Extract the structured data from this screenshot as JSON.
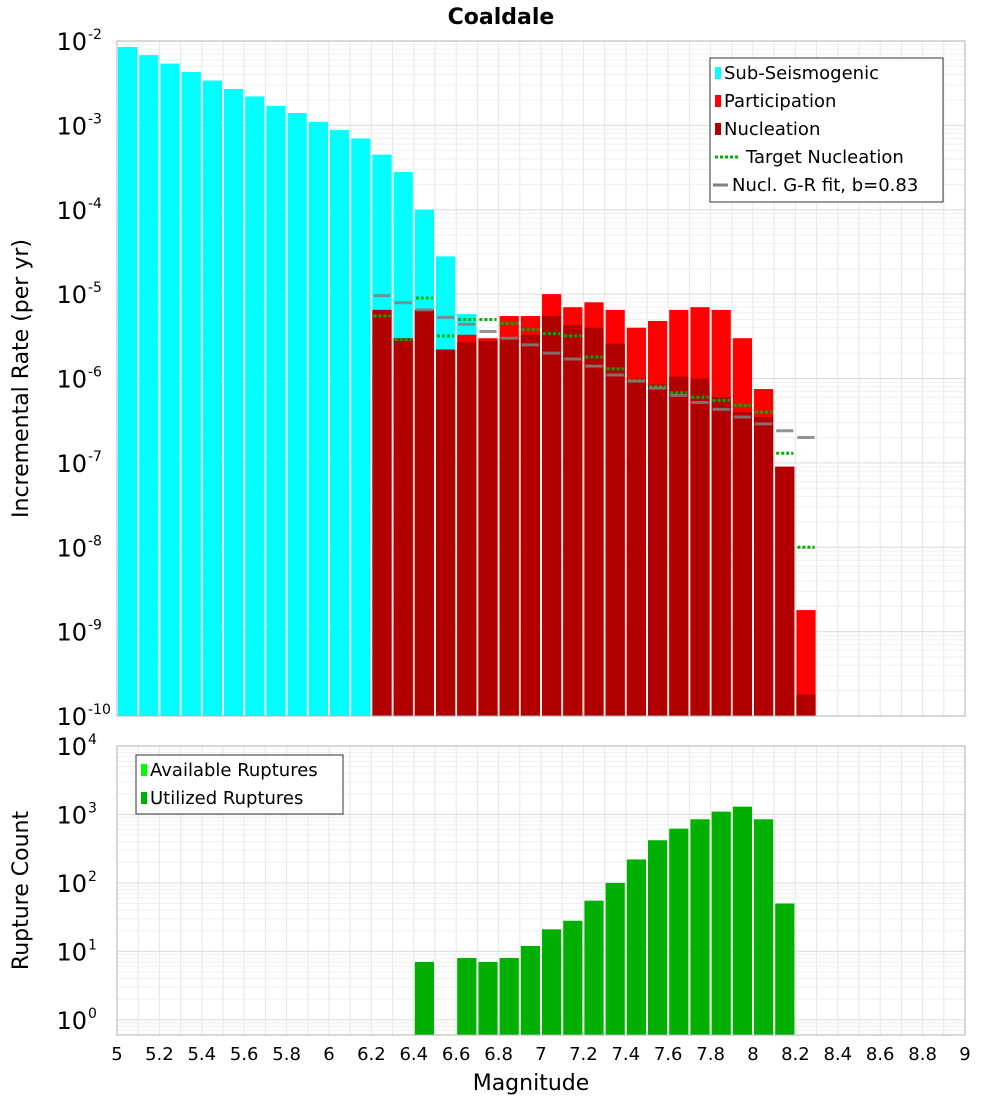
{
  "chart_data": [
    {
      "type": "bar",
      "title": "Coaldale",
      "xlabel": "",
      "ylabel": "Incremental Rate (per yr)",
      "yscale": "log",
      "xlim": [
        5,
        9
      ],
      "ylim": [
        1e-10,
        0.01
      ],
      "bin_width": 0.1,
      "grid": true,
      "legend_position": "top-right",
      "y_ticks": [
        {
          "base": "10",
          "exp": "-10"
        },
        {
          "base": "10",
          "exp": "-9"
        },
        {
          "base": "10",
          "exp": "-8"
        },
        {
          "base": "10",
          "exp": "-7"
        },
        {
          "base": "10",
          "exp": "-6"
        },
        {
          "base": "10",
          "exp": "-5"
        },
        {
          "base": "10",
          "exp": "-4"
        },
        {
          "base": "10",
          "exp": "-3"
        },
        {
          "base": "10",
          "exp": "-2"
        }
      ],
      "series": [
        {
          "name": "Sub-Seismogenic",
          "color": "#00ffff",
          "kind": "bar",
          "x": [
            5.05,
            5.15,
            5.25,
            5.35,
            5.45,
            5.55,
            5.65,
            5.75,
            5.85,
            5.95,
            6.05,
            6.15,
            6.25,
            6.35,
            6.45,
            6.55,
            6.65
          ],
          "values": [
            0.0085,
            0.0068,
            0.0054,
            0.0043,
            0.0034,
            0.0027,
            0.0022,
            0.0017,
            0.0014,
            0.0011,
            0.00088,
            0.0007,
            0.00045,
            0.00028,
            0.0001,
            2.8e-05,
            5.8e-06
          ]
        },
        {
          "name": "Participation",
          "color": "#ff0000",
          "kind": "bar",
          "x": [
            6.25,
            6.35,
            6.45,
            6.55,
            6.65,
            6.75,
            6.85,
            6.95,
            7.05,
            7.15,
            7.25,
            7.35,
            7.45,
            7.55,
            7.65,
            7.75,
            7.85,
            7.95,
            8.05,
            8.15,
            8.25
          ],
          "values": [
            6.5e-06,
            3e-06,
            6.5e-06,
            2.2e-06,
            3.3e-06,
            3e-06,
            5.5e-06,
            5.5e-06,
            1e-05,
            7e-06,
            8e-06,
            6.5e-06,
            4e-06,
            4.8e-06,
            6.5e-06,
            7e-06,
            6.5e-06,
            3e-06,
            7.5e-07,
            9e-08,
            1.8e-09
          ]
        },
        {
          "name": "Nucleation",
          "color": "#b20000",
          "kind": "bar",
          "x": [
            6.25,
            6.35,
            6.45,
            6.55,
            6.65,
            6.75,
            6.85,
            6.95,
            7.05,
            7.15,
            7.25,
            7.35,
            7.45,
            7.55,
            7.65,
            7.75,
            7.85,
            7.95,
            8.05,
            8.15,
            8.25
          ],
          "values": [
            6.5e-06,
            3e-06,
            6.5e-06,
            2.2e-06,
            2.7e-06,
            2.8e-06,
            3e-06,
            3.3e-06,
            5.5e-06,
            4.3e-06,
            4e-06,
            2.6e-06,
            1e-06,
            8.5e-07,
            1.05e-06,
            1e-06,
            6e-07,
            4e-07,
            3.5e-07,
            9e-08,
            1.8e-10
          ]
        },
        {
          "name": "Target Nucleation",
          "color": "#00b000",
          "kind": "dotted-step",
          "x": [
            6.25,
            6.35,
            6.45,
            6.55,
            6.65,
            6.75,
            6.85,
            6.95,
            7.05,
            7.15,
            7.25,
            7.35,
            7.45,
            7.55,
            7.65,
            7.75,
            7.85,
            7.95,
            8.05,
            8.15,
            8.25
          ],
          "values": [
            5.5e-06,
            2.9e-06,
            9e-06,
            3.2e-06,
            5e-06,
            5e-06,
            4.5e-06,
            3.8e-06,
            3.4e-06,
            3.2e-06,
            1.8e-06,
            1.3e-06,
            9.5e-07,
            8e-07,
            6.8e-07,
            6e-07,
            5.5e-07,
            4.8e-07,
            4e-07,
            1.3e-07,
            1e-08
          ]
        },
        {
          "name": "Nucl. G-R fit, b=0.83",
          "color": "#808080",
          "kind": "step",
          "x": [
            6.25,
            6.35,
            6.45,
            6.55,
            6.65,
            6.75,
            6.85,
            6.95,
            7.05,
            7.15,
            7.25,
            7.35,
            7.45,
            7.55,
            7.65,
            7.75,
            7.85,
            7.95,
            8.05,
            8.15,
            8.25
          ],
          "values": [
            9.6e-06,
            7.9e-06,
            6.5e-06,
            5.3e-06,
            4.4e-06,
            3.6e-06,
            3e-06,
            2.5e-06,
            2e-06,
            1.7e-06,
            1.4e-06,
            1.1e-06,
            9.3e-07,
            7.7e-07,
            6.3e-07,
            5.2e-07,
            4.3e-07,
            3.5e-07,
            2.9e-07,
            2.4e-07,
            2e-07
          ]
        }
      ]
    },
    {
      "type": "bar",
      "title": "",
      "xlabel": "Magnitude",
      "ylabel": "Rupture Count",
      "yscale": "log",
      "xlim": [
        5,
        9
      ],
      "ylim": [
        0.6,
        10000
      ],
      "bin_width": 0.1,
      "grid": true,
      "legend_position": "top-left",
      "x_ticks": [
        "5",
        "5.2",
        "5.4",
        "5.6",
        "5.8",
        "6",
        "6.2",
        "6.4",
        "6.6",
        "6.8",
        "7",
        "7.2",
        "7.4",
        "7.6",
        "7.8",
        "8",
        "8.2",
        "8.4",
        "8.6",
        "8.8",
        "9"
      ],
      "y_ticks": [
        {
          "base": "10",
          "exp": "0"
        },
        {
          "base": "10",
          "exp": "1"
        },
        {
          "base": "10",
          "exp": "2"
        },
        {
          "base": "10",
          "exp": "3"
        },
        {
          "base": "10",
          "exp": "4"
        }
      ],
      "series": [
        {
          "name": "Available Ruptures",
          "color": "#00ff00",
          "kind": "bar",
          "x": [],
          "values": []
        },
        {
          "name": "Utilized Ruptures",
          "color": "#00b000",
          "kind": "bar",
          "x": [
            6.45,
            6.65,
            6.75,
            6.85,
            6.95,
            7.05,
            7.15,
            7.25,
            7.35,
            7.45,
            7.55,
            7.65,
            7.75,
            7.85,
            7.95,
            8.05,
            8.15
          ],
          "values": [
            7,
            8,
            7,
            8,
            12,
            21,
            28,
            55,
            100,
            220,
            420,
            620,
            850,
            1100,
            1300,
            850,
            50
          ]
        }
      ]
    }
  ]
}
